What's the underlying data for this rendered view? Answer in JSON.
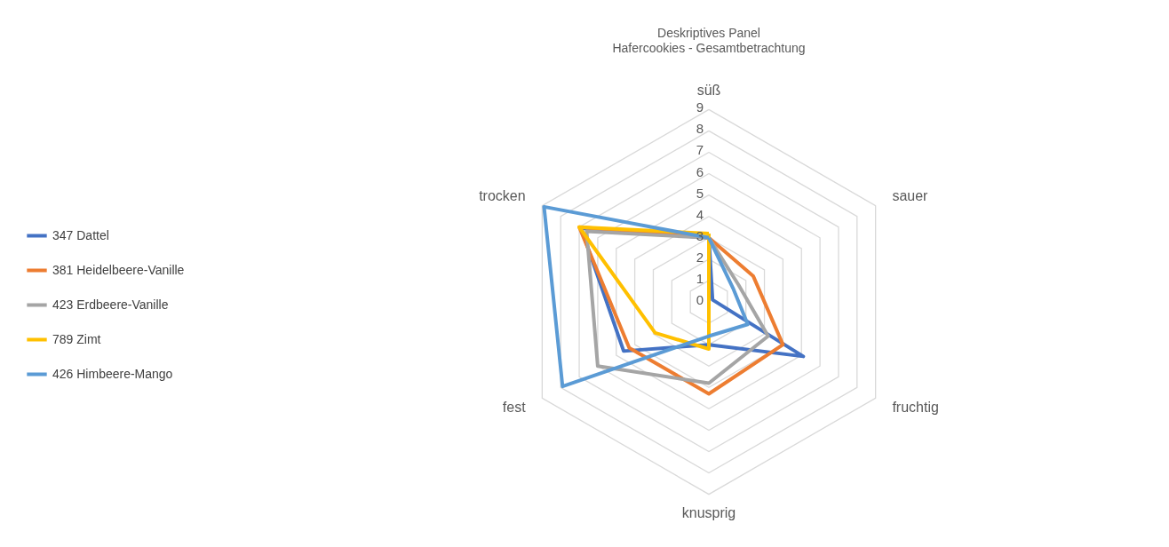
{
  "chart_data": {
    "type": "radar",
    "title": "Deskriptives Panel",
    "subtitle": "Hafercookies - Gesamtbetrachtung",
    "categories": [
      "süß",
      "sauer",
      "fruchtig",
      "knusprig",
      "fest",
      "trocken"
    ],
    "series": [
      {
        "name": "347 Dattel",
        "color": "#4472c4",
        "values": [
          3.0,
          0.2,
          5.1,
          2.0,
          4.6,
          6.9
        ]
      },
      {
        "name": "381 Heidelbeere-Vanille",
        "color": "#ed7d31",
        "values": [
          3.0,
          2.4,
          4.0,
          4.3,
          4.3,
          7.0
        ]
      },
      {
        "name": "423 Erdbeere-Vanille",
        "color": "#a5a5a5",
        "values": [
          3.0,
          1.6,
          3.2,
          3.8,
          6.0,
          6.6
        ]
      },
      {
        "name": "789 Zimt",
        "color": "#ffc000",
        "values": [
          3.2,
          0,
          0,
          2.2,
          2.9,
          7.0
        ]
      },
      {
        "name": "426 Himbeere-Mango",
        "color": "#5b9bd5",
        "values": [
          3.0,
          1.3,
          2.1,
          1.6,
          7.9,
          8.9
        ]
      }
    ],
    "ylim": [
      0,
      9
    ],
    "yticks": [
      0,
      1,
      2,
      3,
      4,
      5,
      6,
      7,
      8,
      9
    ],
    "grid": true,
    "legend": "left"
  }
}
